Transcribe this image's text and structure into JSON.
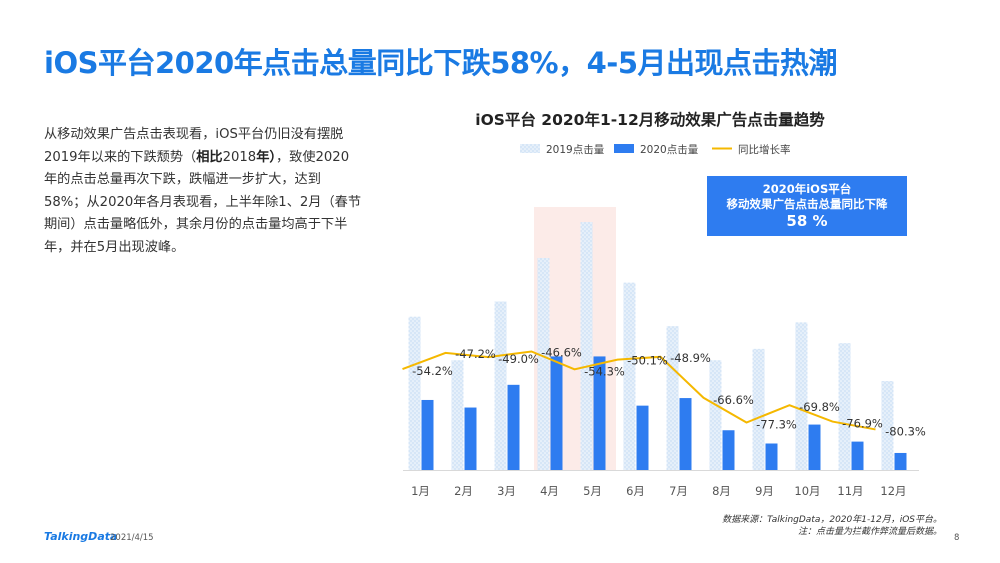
{
  "header": {
    "title": "iOS平台2020年点击总量同比下跌58%，4-5月出现点击热潮"
  },
  "description": {
    "p1": "从移动效果广告点击表现看，iOS平台仍旧没有摆脱2019年以来的下跌颓势（",
    "highlight1": "相比",
    "p2": "2018",
    "highlight2": "年）",
    "p3": "，致使2020年的点击总量再次下跌，跌幅进一步扩大，达到58%；从2020年各月表现看，上半年除1、2月（春节期间）点击量略低外，其余月份的点击量均高于下半年，并在5月出现波峰。"
  },
  "callout": {
    "line1": "2020年iOS平台",
    "line2": "移动效果广告点击总量同比下降",
    "value": "58 %"
  },
  "source": {
    "line1": "数据来源：TalkingData，2020年1-12月，iOS平台。",
    "line2": "注：点击量为拦截作弊流量后数据。"
  },
  "footer": {
    "logo": "TalkingData",
    "date": "2021/4/15",
    "page": "8"
  },
  "colors": {
    "title": "#1a7ae3",
    "bar2019": "#d6e6f7",
    "bar2020": "#2e7cf0",
    "line": "#f5b800",
    "highlight": "#fbe4e0"
  },
  "chart_data": {
    "type": "bar",
    "title": "iOS平台  2020年1-12月移动效果广告点击量趋势",
    "categories": [
      "1月",
      "2月",
      "3月",
      "4月",
      "5月",
      "6月",
      "7月",
      "8月",
      "9月",
      "10月",
      "11月",
      "12月"
    ],
    "series": [
      {
        "name": "2019点击量",
        "type": "bar",
        "values": [
          81,
          58,
          89,
          112,
          131,
          99,
          76,
          58,
          64,
          78,
          67,
          47
        ]
      },
      {
        "name": "2020点击量",
        "type": "bar",
        "values": [
          37,
          33,
          45,
          60,
          60,
          34,
          38,
          21,
          14,
          24,
          15,
          9
        ]
      },
      {
        "name": "同比增长率",
        "type": "line",
        "axis": "secondary",
        "values": [
          -54.2,
          -47.2,
          -49.0,
          -46.6,
          -54.3,
          -50.1,
          -48.9,
          -66.6,
          -77.3,
          -69.8,
          -76.9,
          -80.3
        ],
        "labels": [
          "-54.2%",
          "-47.2%",
          "-49.0%",
          "-46.6%",
          "-54.3%",
          "-50.1%",
          "-48.9%",
          "-66.6%",
          "-77.3%",
          "-69.8%",
          "-76.9%",
          "-80.3%"
        ]
      }
    ],
    "highlight_categories": [
      "4月",
      "5月"
    ],
    "ylim": [
      0,
      140
    ],
    "y2lim": [
      -100,
      -20
    ],
    "legend_position": "top"
  }
}
